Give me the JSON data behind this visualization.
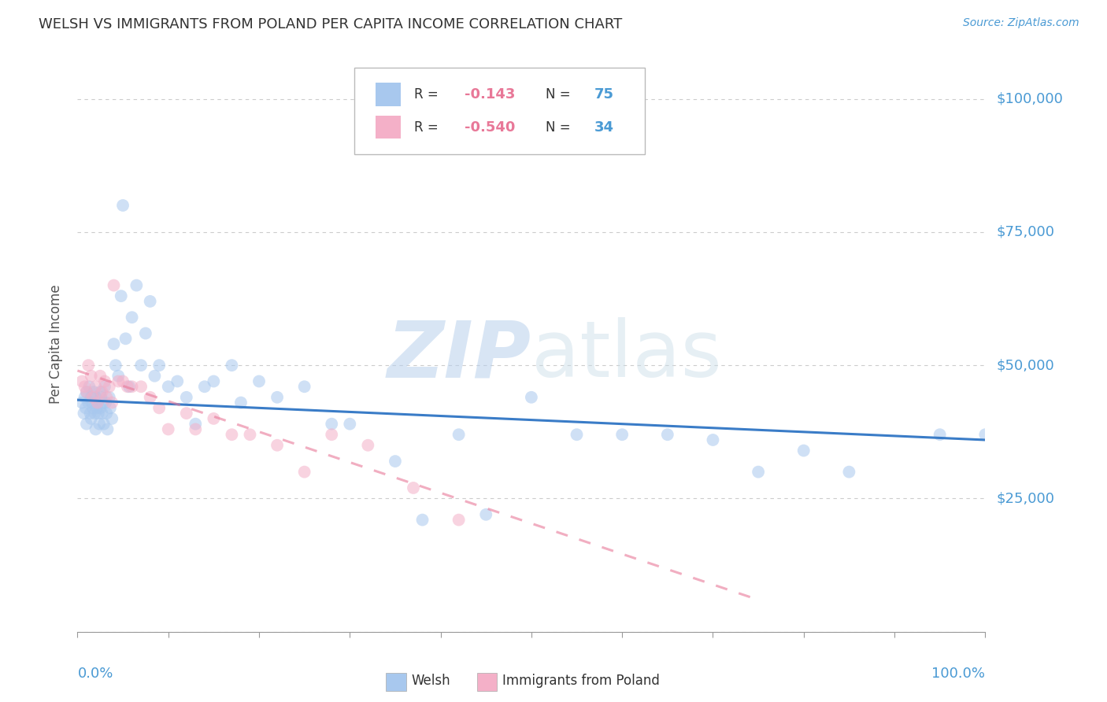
{
  "title": "WELSH VS IMMIGRANTS FROM POLAND PER CAPITA INCOME CORRELATION CHART",
  "source": "Source: ZipAtlas.com",
  "ylabel": "Per Capita Income",
  "yticks": [
    0,
    25000,
    50000,
    75000,
    100000
  ],
  "ytick_labels": [
    "",
    "$25,000",
    "$50,000",
    "$75,000",
    "$100,000"
  ],
  "xlim": [
    0.0,
    1.0
  ],
  "ylim": [
    0,
    108000
  ],
  "watermark_zip": "ZIP",
  "watermark_atlas": "atlas",
  "welsh_color": "#a8c8ee",
  "poland_color": "#f4b0c8",
  "welsh_line_color": "#3a7cc7",
  "poland_line_color": "#e87898",
  "axis_label_color": "#4a9ad4",
  "title_color": "#333333",
  "grid_color": "#cccccc",
  "background_color": "#ffffff",
  "welsh_x": [
    0.005,
    0.007,
    0.008,
    0.009,
    0.01,
    0.01,
    0.012,
    0.013,
    0.014,
    0.015,
    0.015,
    0.016,
    0.017,
    0.018,
    0.019,
    0.02,
    0.02,
    0.021,
    0.022,
    0.023,
    0.024,
    0.025,
    0.025,
    0.026,
    0.027,
    0.028,
    0.029,
    0.03,
    0.031,
    0.032,
    0.033,
    0.035,
    0.036,
    0.038,
    0.04,
    0.042,
    0.045,
    0.048,
    0.05,
    0.053,
    0.057,
    0.06,
    0.065,
    0.07,
    0.075,
    0.08,
    0.085,
    0.09,
    0.1,
    0.11,
    0.12,
    0.13,
    0.14,
    0.15,
    0.17,
    0.18,
    0.2,
    0.22,
    0.25,
    0.28,
    0.3,
    0.35,
    0.38,
    0.42,
    0.45,
    0.5,
    0.55,
    0.6,
    0.65,
    0.7,
    0.75,
    0.8,
    0.85,
    0.95,
    1.0
  ],
  "welsh_y": [
    43000,
    41000,
    44000,
    42000,
    45000,
    39000,
    43000,
    46000,
    41000,
    44000,
    40000,
    43000,
    42000,
    45000,
    41000,
    44000,
    38000,
    42000,
    43000,
    41000,
    39000,
    45000,
    42000,
    44000,
    41000,
    43000,
    39000,
    46000,
    43000,
    41000,
    38000,
    44000,
    42000,
    40000,
    54000,
    50000,
    48000,
    63000,
    80000,
    55000,
    46000,
    59000,
    65000,
    50000,
    56000,
    62000,
    48000,
    50000,
    46000,
    47000,
    44000,
    39000,
    46000,
    47000,
    50000,
    43000,
    47000,
    44000,
    46000,
    39000,
    39000,
    32000,
    21000,
    37000,
    22000,
    44000,
    37000,
    37000,
    37000,
    36000,
    30000,
    34000,
    30000,
    37000,
    37000
  ],
  "poland_x": [
    0.005,
    0.008,
    0.01,
    0.012,
    0.015,
    0.017,
    0.02,
    0.022,
    0.025,
    0.027,
    0.03,
    0.032,
    0.035,
    0.038,
    0.04,
    0.045,
    0.05,
    0.055,
    0.06,
    0.07,
    0.08,
    0.09,
    0.1,
    0.12,
    0.13,
    0.15,
    0.17,
    0.19,
    0.22,
    0.25,
    0.28,
    0.32,
    0.37,
    0.42
  ],
  "poland_y": [
    47000,
    46000,
    45000,
    50000,
    48000,
    44000,
    46000,
    43000,
    48000,
    45000,
    47000,
    44000,
    46000,
    43000,
    65000,
    47000,
    47000,
    46000,
    46000,
    46000,
    44000,
    42000,
    38000,
    41000,
    38000,
    40000,
    37000,
    37000,
    35000,
    30000,
    37000,
    35000,
    27000,
    21000
  ],
  "marker_size": 130,
  "marker_alpha": 0.55,
  "line_width": 2.2,
  "welsh_line_x0": 0.0,
  "welsh_line_x1": 1.0,
  "welsh_line_y0": 43500,
  "welsh_line_y1": 36000,
  "poland_line_x0": 0.0,
  "poland_line_x1": 0.75,
  "poland_line_y0": 49000,
  "poland_line_y1": 6000
}
